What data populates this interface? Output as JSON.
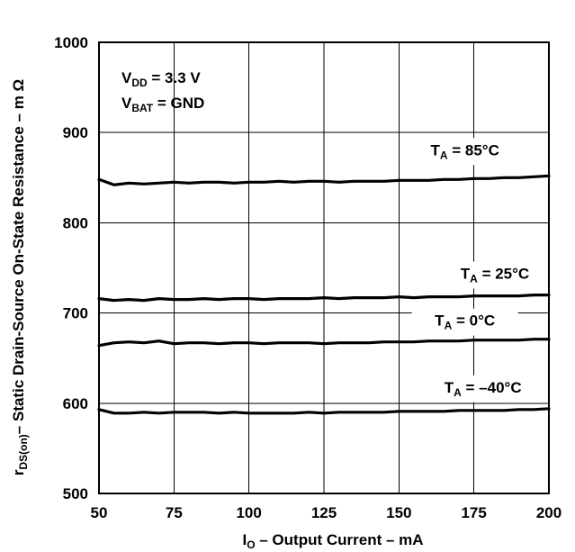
{
  "chart_data": {
    "type": "line",
    "xlabel": {
      "main": "I",
      "sub": "O",
      "rest": " – Output Current – mA"
    },
    "ylabel": {
      "main": "r",
      "sub": "DS(on)",
      "rest": "– Static Drain-Source On-State Resistance – m Ω"
    },
    "xlim": [
      50,
      200
    ],
    "ylim": [
      500,
      1000
    ],
    "x_ticks": [
      50,
      75,
      100,
      125,
      150,
      175,
      200
    ],
    "x_tick_labels": [
      "50",
      "75",
      "100",
      "125",
      "150",
      "175",
      "200"
    ],
    "y_ticks": [
      500,
      600,
      700,
      800,
      900,
      1000
    ],
    "y_tick_labels": [
      "500",
      "600",
      "700",
      "800",
      "900",
      "1000"
    ],
    "grid": true,
    "conditions": [
      {
        "main": "V",
        "sub": "DD",
        "rest": " = 3.3 V"
      },
      {
        "main": "V",
        "sub": "BAT",
        "rest": " = GND"
      }
    ],
    "series": [
      {
        "name": {
          "main": "T",
          "sub": "A",
          "rest": " = 85°C"
        },
        "x": [
          50,
          55,
          60,
          65,
          70,
          75,
          80,
          85,
          90,
          95,
          100,
          105,
          110,
          115,
          120,
          125,
          130,
          135,
          140,
          145,
          150,
          155,
          160,
          165,
          170,
          175,
          180,
          185,
          190,
          195,
          200
        ],
        "values": [
          848,
          842,
          844,
          843,
          844,
          845,
          844,
          845,
          845,
          844,
          845,
          845,
          846,
          845,
          846,
          846,
          845,
          846,
          846,
          846,
          847,
          847,
          847,
          848,
          848,
          849,
          849,
          850,
          850,
          851,
          852
        ]
      },
      {
        "name": {
          "main": "T",
          "sub": "A",
          "rest": " = 25°C"
        },
        "x": [
          50,
          55,
          60,
          65,
          70,
          75,
          80,
          85,
          90,
          95,
          100,
          105,
          110,
          115,
          120,
          125,
          130,
          135,
          140,
          145,
          150,
          155,
          160,
          165,
          170,
          175,
          180,
          185,
          190,
          195,
          200
        ],
        "values": [
          716,
          714,
          715,
          714,
          716,
          715,
          715,
          716,
          715,
          716,
          716,
          715,
          716,
          716,
          716,
          717,
          716,
          717,
          717,
          717,
          718,
          717,
          718,
          718,
          718,
          719,
          719,
          719,
          719,
          720,
          720
        ]
      },
      {
        "name": {
          "main": "T",
          "sub": "A",
          "rest": " = 0°C"
        },
        "x": [
          50,
          55,
          60,
          65,
          70,
          75,
          80,
          85,
          90,
          95,
          100,
          105,
          110,
          115,
          120,
          125,
          130,
          135,
          140,
          145,
          150,
          155,
          160,
          165,
          170,
          175,
          180,
          185,
          190,
          195,
          200
        ],
        "values": [
          664,
          667,
          668,
          667,
          669,
          666,
          667,
          667,
          666,
          667,
          667,
          666,
          667,
          667,
          667,
          666,
          667,
          667,
          667,
          668,
          668,
          668,
          669,
          669,
          669,
          670,
          670,
          670,
          670,
          671,
          671
        ]
      },
      {
        "name": {
          "main": "T",
          "sub": "A",
          "rest": " = –40°C"
        },
        "x": [
          50,
          55,
          60,
          65,
          70,
          75,
          80,
          85,
          90,
          95,
          100,
          105,
          110,
          115,
          120,
          125,
          130,
          135,
          140,
          145,
          150,
          155,
          160,
          165,
          170,
          175,
          180,
          185,
          190,
          195,
          200
        ],
        "values": [
          593,
          589,
          589,
          590,
          589,
          590,
          590,
          590,
          589,
          590,
          589,
          589,
          589,
          589,
          590,
          589,
          590,
          590,
          590,
          590,
          591,
          591,
          591,
          591,
          592,
          592,
          592,
          592,
          593,
          593,
          594
        ]
      }
    ]
  }
}
